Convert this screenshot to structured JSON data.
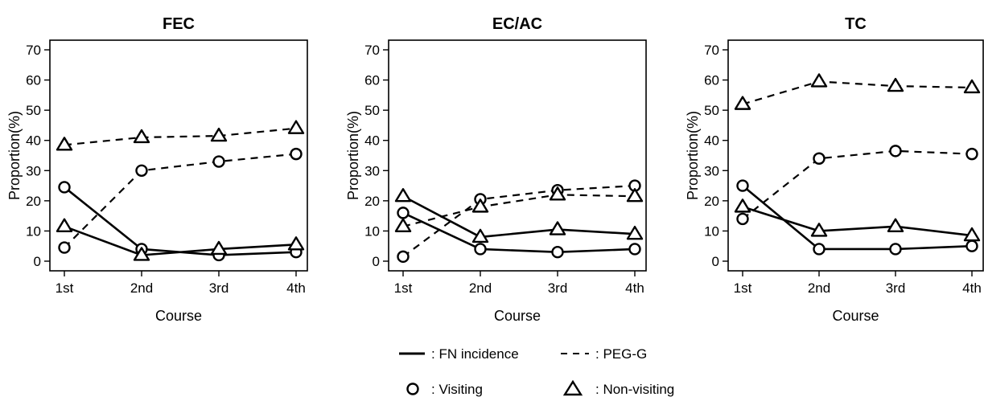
{
  "chart_data": [
    {
      "type": "line",
      "title": "FEC",
      "xlabel": "Course",
      "ylabel": "Proportion(%)",
      "categories": [
        "1st",
        "2nd",
        "3rd",
        "4th"
      ],
      "ylim": [
        0,
        70
      ],
      "yticks": [
        "0",
        "10",
        "20",
        "30",
        "40",
        "50",
        "60",
        "70"
      ],
      "series": [
        {
          "name": "FN incidence (Visiting)",
          "line": "solid",
          "marker": "circle",
          "values": [
            24.5,
            4,
            2,
            3
          ]
        },
        {
          "name": "FN incidence (Non-visiting)",
          "line": "solid",
          "marker": "triangle",
          "values": [
            11.5,
            2,
            4,
            5.5
          ]
        },
        {
          "name": "PEG-G (Visiting)",
          "line": "dashed",
          "marker": "circle",
          "values": [
            4.5,
            30,
            33,
            35.5
          ]
        },
        {
          "name": "PEG-G (Non-visiting)",
          "line": "dashed",
          "marker": "triangle",
          "values": [
            38.5,
            41,
            41.5,
            44
          ]
        }
      ]
    },
    {
      "type": "line",
      "title": "EC/AC",
      "xlabel": "Course",
      "ylabel": "Proportion(%)",
      "categories": [
        "1st",
        "2nd",
        "3rd",
        "4th"
      ],
      "ylim": [
        0,
        70
      ],
      "yticks": [
        "0",
        "10",
        "20",
        "30",
        "40",
        "50",
        "60",
        "70"
      ],
      "series": [
        {
          "name": "FN incidence (Visiting)",
          "line": "solid",
          "marker": "circle",
          "values": [
            16,
            4,
            3,
            4
          ]
        },
        {
          "name": "FN incidence (Non-visiting)",
          "line": "solid",
          "marker": "triangle",
          "values": [
            21.5,
            8,
            10.5,
            9
          ]
        },
        {
          "name": "PEG-G (Visiting)",
          "line": "dashed",
          "marker": "circle",
          "values": [
            1.5,
            20.5,
            23.5,
            25
          ]
        },
        {
          "name": "PEG-G (Non-visiting)",
          "line": "dashed",
          "marker": "triangle",
          "values": [
            11.5,
            18,
            22,
            21.5
          ]
        }
      ]
    },
    {
      "type": "line",
      "title": "TC",
      "xlabel": "Course",
      "ylabel": "Proportion(%)",
      "categories": [
        "1st",
        "2nd",
        "3rd",
        "4th"
      ],
      "ylim": [
        0,
        70
      ],
      "yticks": [
        "0",
        "10",
        "20",
        "30",
        "40",
        "50",
        "60",
        "70"
      ],
      "series": [
        {
          "name": "FN incidence (Visiting)",
          "line": "solid",
          "marker": "circle",
          "values": [
            25,
            4,
            4,
            5
          ]
        },
        {
          "name": "FN incidence (Non-visiting)",
          "line": "solid",
          "marker": "triangle",
          "values": [
            18,
            10,
            11.5,
            8.5
          ]
        },
        {
          "name": "PEG-G (Visiting)",
          "line": "dashed",
          "marker": "circle",
          "values": [
            14,
            34,
            36.5,
            35.5
          ]
        },
        {
          "name": "PEG-G (Non-visiting)",
          "line": "dashed",
          "marker": "triangle",
          "values": [
            52,
            59.5,
            58,
            57.5
          ]
        }
      ]
    }
  ],
  "legend": {
    "line_items": [
      {
        "style": "solid",
        "label": ": FN incidence"
      },
      {
        "style": "dashed",
        "label": ": PEG-G"
      }
    ],
    "marker_items": [
      {
        "marker": "circle",
        "label": ": Visiting"
      },
      {
        "marker": "triangle",
        "label": ": Non-visiting"
      }
    ]
  }
}
